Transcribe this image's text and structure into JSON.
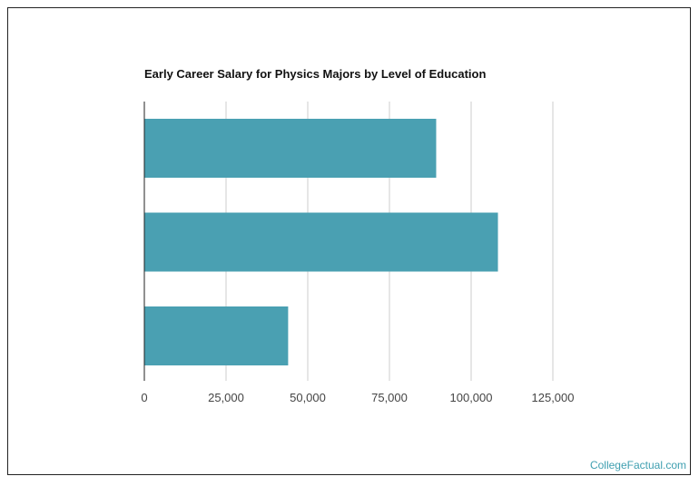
{
  "chart_data": {
    "type": "bar",
    "orientation": "horizontal",
    "title": "Early Career Salary for Physics Majors by Level of Education",
    "categories": [
      "",
      "",
      ""
    ],
    "values": [
      89300,
      108200,
      44000
    ],
    "xlabel": "",
    "ylabel": "",
    "xlim": [
      0,
      125000
    ],
    "ticks": [
      "0",
      "25,000",
      "50,000",
      "75,000",
      "100,000",
      "125,000"
    ],
    "tick_values": [
      0,
      25000,
      50000,
      75000,
      100000,
      125000
    ],
    "grid": true,
    "bar_color": "#4aa0b2"
  },
  "footer": {
    "credit": "CollegeFactual.com"
  }
}
